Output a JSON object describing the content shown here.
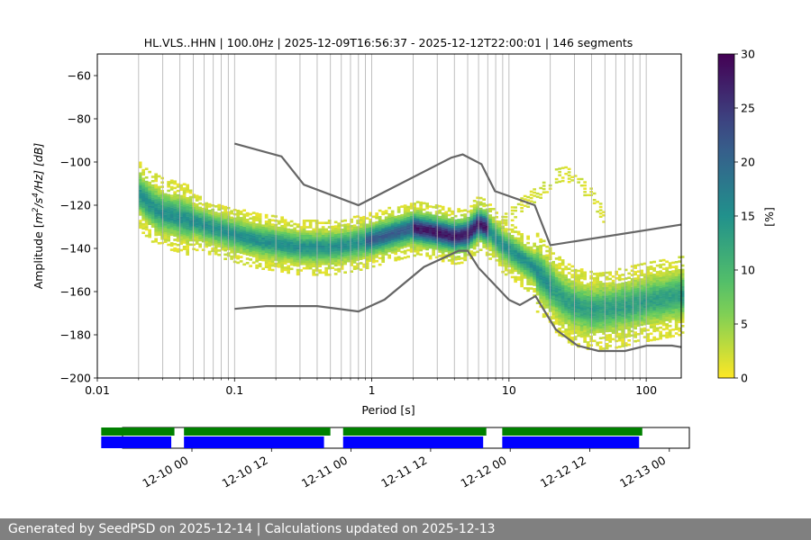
{
  "footer": {
    "text": "Generated by SeedPSD on 2025-12-14 | Calculations updated on 2025-12-13"
  },
  "chart_data": {
    "type": "heatmap",
    "title": "HL.VLS..HHN | 100.0Hz | 2025-12-09T16:56:37 - 2025-12-12T22:00:01 | 146 segments",
    "xlabel": "Period [s]",
    "ylabel_parts": [
      "Amplitude [",
      "m",
      "2",
      "/s",
      "4",
      "/Hz] [dB]"
    ],
    "x_scale": "log",
    "xlim": [
      0.01,
      180
    ],
    "ylim": [
      -200,
      -50
    ],
    "x_ticks": [
      {
        "value": 0.01,
        "label": "0.01"
      },
      {
        "value": 0.1,
        "label": "0.1"
      },
      {
        "value": 1,
        "label": "1"
      },
      {
        "value": 10,
        "label": "10"
      },
      {
        "value": 100,
        "label": "100"
      }
    ],
    "y_ticks": [
      {
        "value": -60,
        "label": "−60"
      },
      {
        "value": -80,
        "label": "−80"
      },
      {
        "value": -100,
        "label": "−100"
      },
      {
        "value": -120,
        "label": "−120"
      },
      {
        "value": -140,
        "label": "−140"
      },
      {
        "value": -160,
        "label": "−160"
      },
      {
        "value": -180,
        "label": "−180"
      },
      {
        "value": -200,
        "label": "−200"
      }
    ],
    "grid": "log-x-vertical",
    "colormap": "viridis_r",
    "colorbar": {
      "label": "[%]",
      "range": [
        0,
        30
      ],
      "ticks": [
        {
          "value": 0,
          "label": "0"
        },
        {
          "value": 5,
          "label": "5"
        },
        {
          "value": 10,
          "label": "10"
        },
        {
          "value": 15,
          "label": "15"
        },
        {
          "value": 20,
          "label": "20"
        },
        {
          "value": 25,
          "label": "25"
        },
        {
          "value": 30,
          "label": "30"
        }
      ]
    },
    "mode_curve": [
      [
        0.02,
        -114
      ],
      [
        0.025,
        -120
      ],
      [
        0.03,
        -123
      ],
      [
        0.04,
        -125
      ],
      [
        0.05,
        -127
      ],
      [
        0.07,
        -130
      ],
      [
        0.1,
        -133
      ],
      [
        0.15,
        -136
      ],
      [
        0.2,
        -137
      ],
      [
        0.3,
        -139
      ],
      [
        0.5,
        -139
      ],
      [
        0.8,
        -137
      ],
      [
        1.2,
        -134
      ],
      [
        2,
        -130
      ],
      [
        3,
        -132
      ],
      [
        4,
        -134
      ],
      [
        5,
        -133
      ],
      [
        6,
        -128
      ],
      [
        7,
        -130
      ],
      [
        8,
        -135
      ],
      [
        10,
        -140
      ],
      [
        15,
        -148
      ],
      [
        20,
        -157
      ],
      [
        25,
        -163
      ],
      [
        30,
        -166
      ],
      [
        40,
        -168
      ],
      [
        60,
        -167
      ],
      [
        100,
        -164
      ],
      [
        180,
        -161
      ]
    ],
    "secondary_curve": [
      [
        9,
        -128
      ],
      [
        12,
        -120
      ],
      [
        18,
        -112
      ],
      [
        22,
        -106
      ],
      [
        26,
        -105
      ],
      [
        30,
        -107
      ],
      [
        40,
        -115
      ],
      [
        50,
        -125
      ]
    ],
    "nhnm": [
      [
        0.1,
        -91.5
      ],
      [
        0.22,
        -97.4
      ],
      [
        0.32,
        -110.5
      ],
      [
        0.8,
        -120
      ],
      [
        3.8,
        -98
      ],
      [
        4.6,
        -96.5
      ],
      [
        6.3,
        -101
      ],
      [
        7.9,
        -113.5
      ],
      [
        15.4,
        -120
      ],
      [
        20,
        -138.5
      ],
      [
        180,
        -129
      ]
    ],
    "nlnm": [
      [
        0.1,
        -168
      ],
      [
        0.17,
        -166.7
      ],
      [
        0.4,
        -166.7
      ],
      [
        0.8,
        -169.2
      ],
      [
        1.24,
        -163.7
      ],
      [
        2.4,
        -148.6
      ],
      [
        4.3,
        -141.1
      ],
      [
        5,
        -141.1
      ],
      [
        6,
        -149
      ],
      [
        10,
        -163.8
      ],
      [
        12,
        -166.2
      ],
      [
        15.6,
        -162.1
      ],
      [
        21.9,
        -177.5
      ],
      [
        31.6,
        -185
      ],
      [
        45,
        -187.5
      ],
      [
        70,
        -187.5
      ],
      [
        101,
        -185
      ],
      [
        154,
        -185
      ],
      [
        180,
        -185.7
      ]
    ],
    "timeline": {
      "x_ticks": [
        "12-10 00",
        "12-10 12",
        "12-11 00",
        "12-11 12",
        "12-12 00",
        "12-12 12",
        "12-13 00"
      ],
      "data_segments": [
        [
          0.0,
          0.46
        ],
        [
          0.52,
          1.44
        ],
        [
          1.52,
          2.42
        ],
        [
          2.52,
          3.4
        ]
      ],
      "psd_segments": [
        [
          0.0,
          0.44
        ],
        [
          0.52,
          1.4
        ],
        [
          1.52,
          2.4
        ],
        [
          2.52,
          3.38
        ]
      ],
      "colors": {
        "data": "#008000",
        "psd": "#0000ff"
      }
    }
  }
}
